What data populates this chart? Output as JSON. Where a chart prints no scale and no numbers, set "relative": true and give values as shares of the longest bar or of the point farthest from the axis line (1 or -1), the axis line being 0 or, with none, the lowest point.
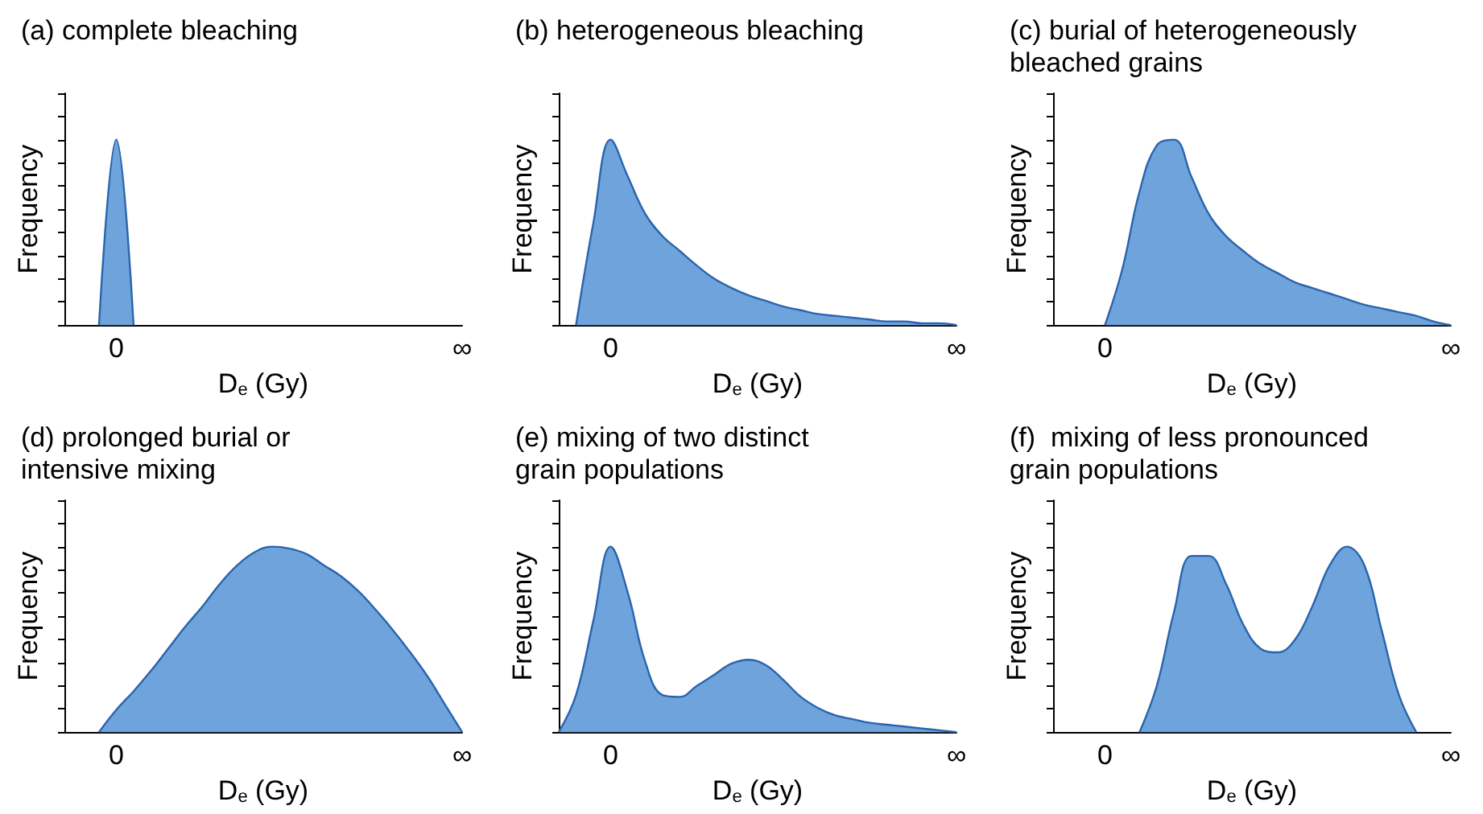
{
  "chart_data": [
    {
      "type": "area",
      "title": "(a) complete bleaching",
      "xlabel": "D$_{e}$ (Gy)",
      "ylabel": "Frequency",
      "relative": true,
      "categories": [
        null,
        null,
        null,
        "0",
        null,
        null,
        null,
        null,
        null,
        null,
        null,
        null,
        null,
        null,
        null,
        null,
        null,
        null,
        null,
        null,
        null,
        null,
        null,
        "∞"
      ],
      "series": [
        {
          "color": "#6fa3dc",
          "values": [
            null,
            null,
            0,
            1,
            0,
            null,
            null,
            null,
            null,
            null,
            null,
            null,
            null,
            null,
            null,
            null,
            null,
            null,
            null,
            null,
            null,
            null,
            null,
            null
          ]
        }
      ]
    },
    {
      "type": "area",
      "title": "(b) heterogeneous bleaching",
      "xlabel": "D$_{e}$ (Gy)",
      "ylabel": "Frequency",
      "relative": true,
      "categories": [
        null,
        null,
        null,
        "0",
        null,
        null,
        null,
        null,
        null,
        null,
        null,
        null,
        null,
        null,
        null,
        null,
        null,
        null,
        null,
        null,
        null,
        null,
        null,
        "∞"
      ],
      "series": [
        {
          "color": "#6fa3dc",
          "values": [
            null,
            0,
            0.55,
            1,
            0.8,
            0.6,
            0.48,
            0.4,
            0.32,
            0.25,
            0.2,
            0.16,
            0.13,
            0.1,
            0.08,
            0.06,
            0.05,
            0.04,
            0.03,
            0.02,
            0.02,
            0.01,
            0.01,
            0
          ]
        }
      ]
    },
    {
      "type": "area",
      "title": "(c) burial of heterogeneously\nbleached grains",
      "xlabel": "D$_{e}$ (Gy)",
      "ylabel": "Frequency",
      "relative": true,
      "categories": [
        null,
        null,
        null,
        "0",
        null,
        null,
        null,
        null,
        null,
        null,
        null,
        null,
        null,
        null,
        null,
        null,
        null,
        null,
        null,
        null,
        null,
        null,
        null,
        "∞"
      ],
      "series": [
        {
          "color": "#6fa3dc",
          "values": [
            null,
            null,
            null,
            0,
            0.3,
            0.72,
            0.97,
            1,
            0.8,
            0.6,
            0.48,
            0.4,
            0.33,
            0.28,
            0.23,
            0.2,
            0.17,
            0.14,
            0.11,
            0.09,
            0.07,
            0.05,
            0.02,
            0
          ]
        }
      ]
    },
    {
      "type": "area",
      "title": "(d) prolonged burial or\nintensive mixing",
      "xlabel": "D$_{e}$ (Gy)",
      "ylabel": "Frequency",
      "relative": true,
      "categories": [
        null,
        null,
        null,
        "0",
        null,
        null,
        null,
        null,
        null,
        null,
        null,
        null,
        null,
        null,
        null,
        null,
        null,
        null,
        null,
        null,
        null,
        null,
        null,
        "∞"
      ],
      "series": [
        {
          "color": "#6fa3dc",
          "values": [
            null,
            null,
            0,
            0.12,
            0.22,
            0.33,
            0.45,
            0.57,
            0.68,
            0.8,
            0.9,
            0.97,
            1,
            0.99,
            0.96,
            0.9,
            0.84,
            0.76,
            0.66,
            0.55,
            0.43,
            0.3,
            0.15,
            0
          ]
        }
      ]
    },
    {
      "type": "area",
      "title": "(e) mixing of two distinct\ngrain populations",
      "xlabel": "D$_{e}$ (Gy)",
      "ylabel": "Frequency",
      "relative": true,
      "categories": [
        null,
        null,
        null,
        "0",
        null,
        null,
        null,
        null,
        null,
        null,
        null,
        null,
        null,
        null,
        null,
        null,
        null,
        null,
        null,
        null,
        null,
        null,
        null,
        "∞"
      ],
      "series": [
        {
          "color": "#6fa3dc",
          "values": [
            0,
            0.2,
            0.6,
            1,
            0.75,
            0.38,
            0.2,
            0.19,
            0.25,
            0.31,
            0.37,
            0.39,
            0.36,
            0.28,
            0.19,
            0.13,
            0.09,
            0.07,
            0.05,
            0.04,
            0.03,
            0.02,
            0.01,
            0
          ]
        }
      ]
    },
    {
      "type": "area",
      "title": "(f)  mixing of less pronounced\ngrain populations",
      "xlabel": "D$_{e}$ (Gy)",
      "ylabel": "Frequency",
      "relative": true,
      "categories": [
        null,
        null,
        null,
        "0",
        null,
        null,
        null,
        null,
        null,
        null,
        null,
        null,
        null,
        null,
        null,
        null,
        null,
        null,
        null,
        null,
        null,
        null,
        null,
        "∞"
      ],
      "series": [
        {
          "color": "#6fa3dc",
          "values": [
            null,
            null,
            null,
            null,
            null,
            0,
            0.25,
            0.65,
            0.95,
            0.95,
            0.8,
            0.58,
            0.45,
            0.43,
            0.5,
            0.68,
            0.9,
            1,
            0.9,
            0.55,
            0.2,
            0,
            null,
            null
          ]
        }
      ]
    }
  ]
}
